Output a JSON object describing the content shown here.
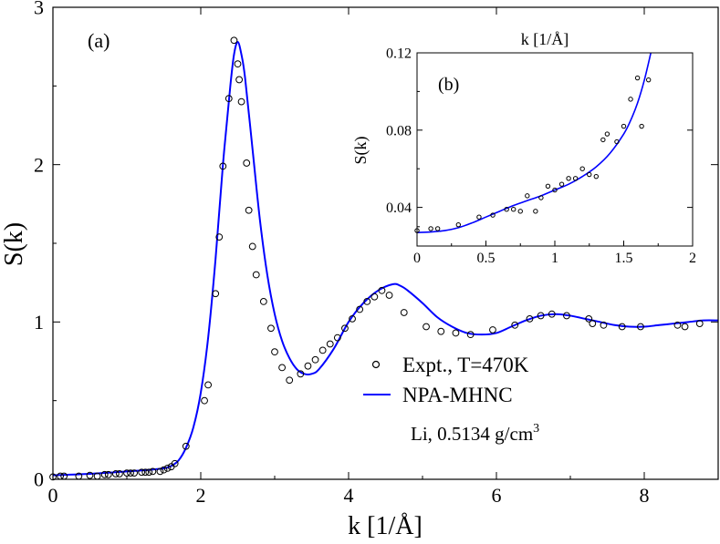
{
  "colors": {
    "theory": "#0000ff",
    "expt": "#000000",
    "axes": "#000000"
  },
  "chart_data": [
    {
      "type": "line",
      "panel_label": "(a)",
      "xlabel": "k [1/Å]",
      "ylabel": "S(k)",
      "xlim": [
        0,
        9
      ],
      "ylim": [
        0,
        3
      ],
      "xticks": [
        0,
        2,
        4,
        6,
        8
      ],
      "yticks": [
        0,
        1,
        2,
        3
      ],
      "xtick_labels": [
        "0",
        "2",
        "4",
        "6",
        "8"
      ],
      "ytick_labels": [
        "0",
        "1",
        "2",
        "3"
      ],
      "legend": {
        "placement": "right",
        "entries": [
          "Expt., T=470K",
          "NPA-MHNC"
        ]
      },
      "annotation": {
        "text": "Li, 0.5134 g/cm",
        "superscript": "3"
      },
      "series": [
        {
          "name": "Expt., T=470K",
          "style": "open-circle",
          "x": [
            0.0,
            0.1,
            0.15,
            0.35,
            0.5,
            0.6,
            0.7,
            0.75,
            0.85,
            0.9,
            1.0,
            1.05,
            1.1,
            1.2,
            1.25,
            1.3,
            1.35,
            1.45,
            1.5,
            1.55,
            1.6,
            1.65,
            1.8,
            2.05,
            2.1,
            2.2,
            2.25,
            2.3,
            2.38,
            2.45,
            2.5,
            2.52,
            2.55,
            2.62,
            2.65,
            2.7,
            2.75,
            2.85,
            2.95,
            3.0,
            3.1,
            3.2,
            3.35,
            3.45,
            3.55,
            3.65,
            3.75,
            3.85,
            3.95,
            4.05,
            4.15,
            4.25,
            4.35,
            4.45,
            4.55,
            4.75,
            5.05,
            5.25,
            5.45,
            5.65,
            5.95,
            6.25,
            6.45,
            6.6,
            6.75,
            6.95,
            7.25,
            7.3,
            7.45,
            7.7,
            7.95,
            8.45,
            8.55,
            8.75
          ],
          "y": [
            0.015,
            0.02,
            0.02,
            0.02,
            0.025,
            0.02,
            0.03,
            0.03,
            0.035,
            0.035,
            0.04,
            0.04,
            0.04,
            0.045,
            0.045,
            0.045,
            0.05,
            0.05,
            0.06,
            0.07,
            0.08,
            0.1,
            0.21,
            0.5,
            0.6,
            1.18,
            1.54,
            1.99,
            2.42,
            2.79,
            2.64,
            2.54,
            2.4,
            2.01,
            1.71,
            1.48,
            1.3,
            1.13,
            0.96,
            0.81,
            0.71,
            0.63,
            0.67,
            0.72,
            0.76,
            0.82,
            0.86,
            0.9,
            0.96,
            1.02,
            1.08,
            1.13,
            1.16,
            1.2,
            1.17,
            1.06,
            0.97,
            0.94,
            0.93,
            0.92,
            0.95,
            0.98,
            1.02,
            1.04,
            1.05,
            1.04,
            1.02,
            0.99,
            0.98,
            0.97,
            0.97,
            0.98,
            0.97,
            0.99
          ]
        },
        {
          "name": "NPA-MHNC",
          "style": "line",
          "x": [
            0.0,
            0.5,
            1.0,
            1.3,
            1.5,
            1.6,
            1.7,
            1.8,
            1.9,
            2.0,
            2.1,
            2.2,
            2.3,
            2.4,
            2.45,
            2.5,
            2.55,
            2.6,
            2.7,
            2.8,
            2.9,
            3.0,
            3.1,
            3.2,
            3.3,
            3.4,
            3.5,
            3.6,
            3.8,
            4.0,
            4.2,
            4.4,
            4.6,
            4.7,
            4.8,
            5.0,
            5.2,
            5.4,
            5.6,
            5.8,
            6.0,
            6.2,
            6.4,
            6.6,
            6.8,
            7.0,
            7.2,
            7.4,
            7.6,
            7.8,
            8.0,
            8.2,
            8.4,
            8.6,
            8.8,
            9.0
          ],
          "y": [
            0.026,
            0.035,
            0.05,
            0.06,
            0.07,
            0.085,
            0.12,
            0.2,
            0.33,
            0.55,
            0.9,
            1.4,
            2.0,
            2.5,
            2.7,
            2.78,
            2.7,
            2.55,
            2.1,
            1.65,
            1.3,
            1.05,
            0.88,
            0.77,
            0.7,
            0.67,
            0.67,
            0.7,
            0.83,
            1.0,
            1.12,
            1.2,
            1.24,
            1.23,
            1.2,
            1.12,
            1.03,
            0.97,
            0.93,
            0.92,
            0.93,
            0.97,
            1.01,
            1.04,
            1.05,
            1.04,
            1.02,
            1.0,
            0.98,
            0.97,
            0.97,
            0.98,
            0.99,
            1.0,
            1.01,
            1.01
          ]
        }
      ]
    },
    {
      "type": "line",
      "panel_label": "(b)",
      "xlabel": "k [1/Å]",
      "ylabel": "S(k)",
      "xlim": [
        0,
        2
      ],
      "ylim": [
        0.02,
        0.12
      ],
      "xticks": [
        0,
        0.5,
        1,
        1.5,
        2
      ],
      "yticks": [
        0.04,
        0.08,
        0.12
      ],
      "xtick_labels": [
        "0",
        "0.5",
        "1",
        "1.5",
        "2"
      ],
      "ytick_labels": [
        "0.04",
        "0.08",
        "0.12"
      ],
      "series": [
        {
          "name": "Expt., T=470K",
          "style": "open-circle",
          "x": [
            0.0,
            0.1,
            0.15,
            0.3,
            0.45,
            0.55,
            0.65,
            0.7,
            0.75,
            0.8,
            0.86,
            0.9,
            0.95,
            1.0,
            1.05,
            1.1,
            1.15,
            1.2,
            1.25,
            1.3,
            1.35,
            1.38,
            1.45,
            1.5,
            1.55,
            1.6,
            1.63,
            1.68
          ],
          "y": [
            0.028,
            0.029,
            0.029,
            0.031,
            0.035,
            0.036,
            0.039,
            0.039,
            0.038,
            0.046,
            0.038,
            0.045,
            0.051,
            0.049,
            0.052,
            0.055,
            0.055,
            0.06,
            0.057,
            0.056,
            0.075,
            0.078,
            0.074,
            0.082,
            0.096,
            0.107,
            0.082,
            0.106
          ]
        },
        {
          "name": "NPA-MHNC",
          "style": "line",
          "x": [
            0.0,
            0.1,
            0.2,
            0.3,
            0.4,
            0.5,
            0.6,
            0.7,
            0.8,
            0.9,
            1.0,
            1.1,
            1.2,
            1.3,
            1.4,
            1.5,
            1.55,
            1.6,
            1.65,
            1.7
          ],
          "y": [
            0.027,
            0.0273,
            0.028,
            0.0295,
            0.032,
            0.035,
            0.038,
            0.041,
            0.0435,
            0.046,
            0.049,
            0.052,
            0.056,
            0.061,
            0.068,
            0.078,
            0.085,
            0.094,
            0.106,
            0.121
          ]
        }
      ]
    }
  ]
}
